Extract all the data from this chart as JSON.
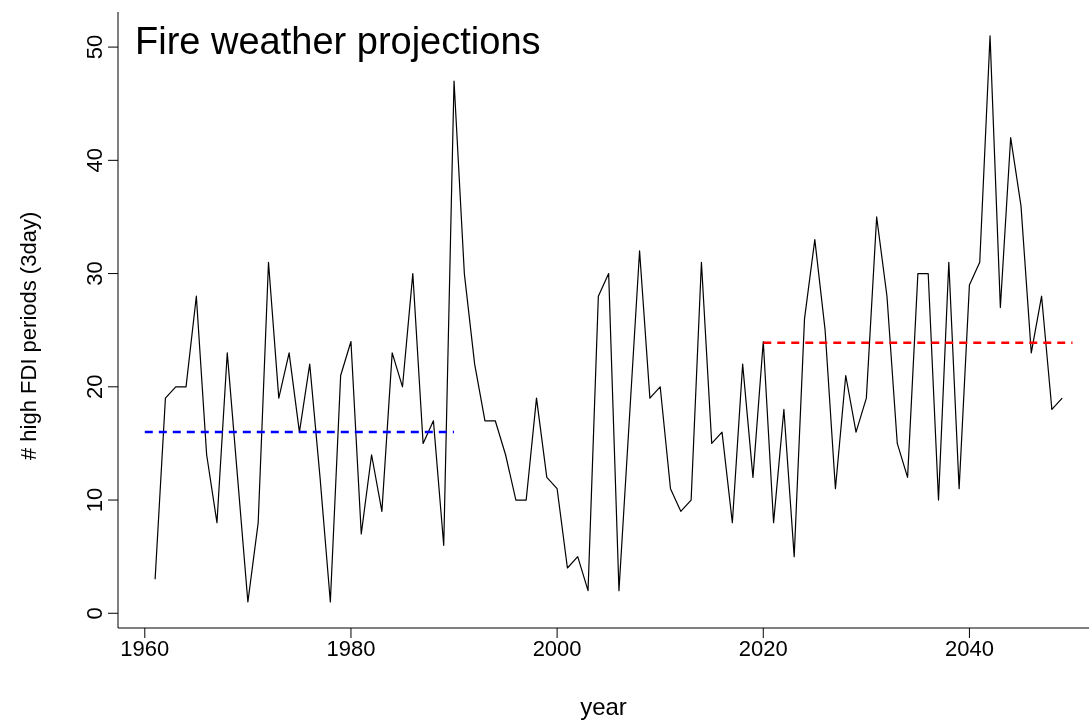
{
  "chart_data": {
    "type": "line",
    "title": "Fire weather projections",
    "xlabel": "year",
    "ylabel": "# high FDI periods (3day)",
    "x": [
      1961,
      1962,
      1963,
      1964,
      1965,
      1966,
      1967,
      1968,
      1969,
      1970,
      1971,
      1972,
      1973,
      1974,
      1975,
      1976,
      1977,
      1978,
      1979,
      1980,
      1981,
      1982,
      1983,
      1984,
      1985,
      1986,
      1987,
      1988,
      1989,
      1990,
      1991,
      1992,
      1993,
      1994,
      1995,
      1996,
      1997,
      1998,
      1999,
      2000,
      2001,
      2002,
      2003,
      2004,
      2005,
      2006,
      2007,
      2008,
      2009,
      2010,
      2011,
      2012,
      2013,
      2014,
      2015,
      2016,
      2017,
      2018,
      2019,
      2020,
      2021,
      2022,
      2023,
      2024,
      2025,
      2026,
      2027,
      2028,
      2029,
      2030,
      2031,
      2032,
      2033,
      2034,
      2035,
      2036,
      2037,
      2038,
      2039,
      2040,
      2041,
      2042,
      2043,
      2044,
      2045,
      2046,
      2047,
      2048,
      2049
    ],
    "series": [
      {
        "color": "#000000",
        "values": [
          3,
          19,
          20,
          20,
          28,
          14,
          8,
          23,
          12,
          1,
          8,
          31,
          19,
          23,
          16,
          22,
          12,
          1,
          21,
          24,
          7,
          14,
          9,
          23,
          20,
          30,
          15,
          17,
          6,
          47,
          30,
          22,
          17,
          17,
          14,
          10,
          10,
          19,
          12,
          11,
          4,
          5,
          2,
          28,
          30,
          2,
          17,
          32,
          19,
          20,
          11,
          9,
          10,
          31,
          15,
          16,
          8,
          22,
          12,
          24,
          8,
          18,
          5,
          26,
          33,
          25,
          11,
          21,
          16,
          19,
          35,
          28,
          15,
          12,
          30,
          30,
          10,
          31,
          11,
          29,
          31,
          51,
          27,
          42,
          36,
          23,
          28,
          18,
          19
        ]
      },
      {
        "x": [
          1960,
          1990
        ],
        "values": [
          16,
          16
        ],
        "color": "#0000ff",
        "line_style": "dashed"
      },
      {
        "x": [
          2020,
          2050
        ],
        "values": [
          23.9,
          23.9
        ],
        "color": "#ff0000",
        "line_style": "dashed"
      }
    ],
    "xlim": [
      1957.4,
      2051.6
    ],
    "ylim": [
      -1.3,
      53.1
    ],
    "xticks": [
      1960,
      1980,
      2000,
      2020,
      2040
    ],
    "yticks": [
      0,
      10,
      20,
      30,
      40,
      50
    ],
    "marker": "none",
    "line_style": "solid"
  }
}
